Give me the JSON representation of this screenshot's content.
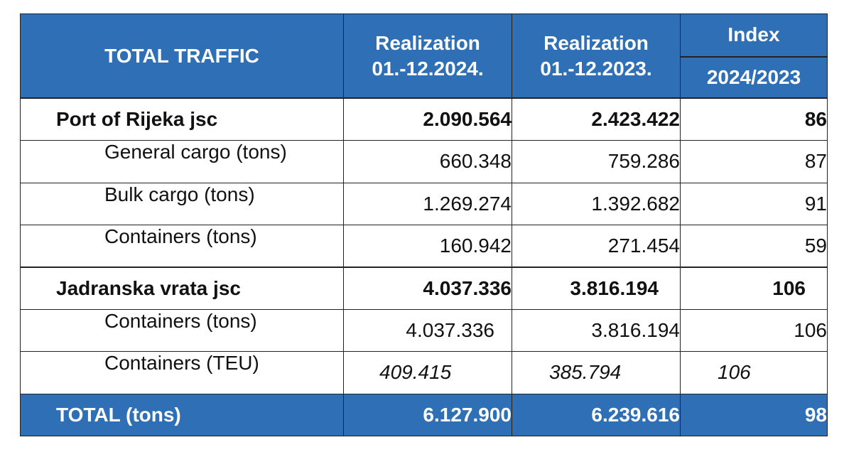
{
  "header": {
    "title": "TOTAL TRAFFIC",
    "col1": {
      "line1": "Realization",
      "line2": "01.-12.2024."
    },
    "col2": {
      "line1": "Realization",
      "line2": "01.-12.2023."
    },
    "index_title": "Index",
    "index_sub": "2024/2023"
  },
  "rows": [
    {
      "label": "Port of Rijeka jsc",
      "v2024": "2.090.564",
      "v2023": "2.423.422",
      "index": "86"
    },
    {
      "label": "General cargo (tons)",
      "v2024": "660.348",
      "v2023": "759.286",
      "index": "87"
    },
    {
      "label": "Bulk cargo (tons)",
      "v2024": "1.269.274",
      "v2023": "1.392.682",
      "index": "91"
    },
    {
      "label": "Containers (tons)",
      "v2024": "160.942",
      "v2023": "271.454",
      "index": "59"
    },
    {
      "label": "Jadranska vrata jsc",
      "v2024": "4.037.336",
      "v2023": "3.816.194",
      "index": "106"
    },
    {
      "label": "Containers (tons)",
      "v2024": "4.037.336",
      "v2023": "3.816.194",
      "index": "106"
    },
    {
      "label": "Containers (TEU)",
      "v2024": "409.415",
      "v2023": "385.794",
      "index": "106"
    }
  ],
  "total": {
    "label": "TOTAL (tons)",
    "v2024": "6.127.900",
    "v2023": "6.239.616",
    "index": "98"
  }
}
